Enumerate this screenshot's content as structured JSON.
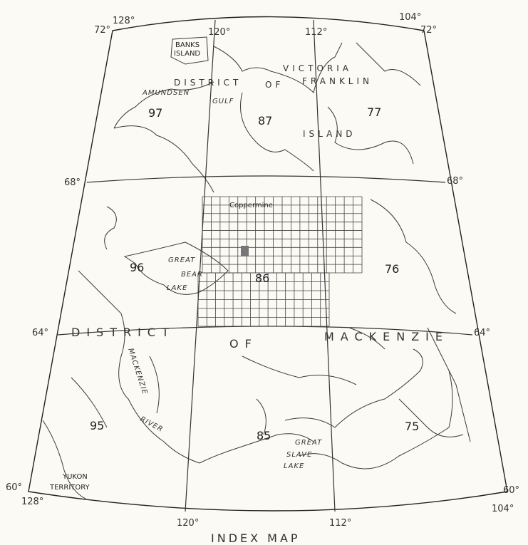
{
  "title": "INDEX MAP",
  "longitude_labels_top": [
    "128°",
    "120°",
    "112°",
    "104°"
  ],
  "longitude_labels_bottom": [
    "128°",
    "120°",
    "112°",
    "104°"
  ],
  "latitude_labels_left": [
    "72°",
    "68°",
    "64°",
    "60°"
  ],
  "latitude_labels_right": [
    "72°",
    "68°",
    "64°",
    "60°"
  ],
  "sheets": [
    "97",
    "87",
    "77",
    "96",
    "86",
    "76",
    "95",
    "85",
    "75"
  ],
  "regions": {
    "banks": [
      "BANKS",
      "ISLAND"
    ],
    "franklin_1": "DISTRICT",
    "franklin_2": "OF",
    "franklin_3": "FRANKLIN",
    "victoria_1": "VICTORIA",
    "victoria_2": "ISLAND",
    "mackenzie_1": "DISTRICT",
    "mackenzie_2": "OF",
    "mackenzie_3": "MACKENZIE",
    "yukon": [
      "YUKON",
      "TERRITORY"
    ]
  },
  "water_labels": {
    "amundsen": "AMUNDSEN",
    "gulf": "GULF",
    "great_bear_1": "GREAT",
    "great_bear_2": "BEAR",
    "great_bear_3": "LAKE",
    "mackenzie_river_1": "MACKENZIE",
    "mackenzie_river_2": "RIVER",
    "great_slave_1": "GREAT",
    "great_slave_2": "SLAVE",
    "great_slave_3": "LAKE"
  },
  "places": {
    "coppermine": "Coppermine"
  },
  "colors": {
    "ink": "#333333",
    "paper": "#fbfaf5",
    "highlight_cell": "#777777"
  }
}
